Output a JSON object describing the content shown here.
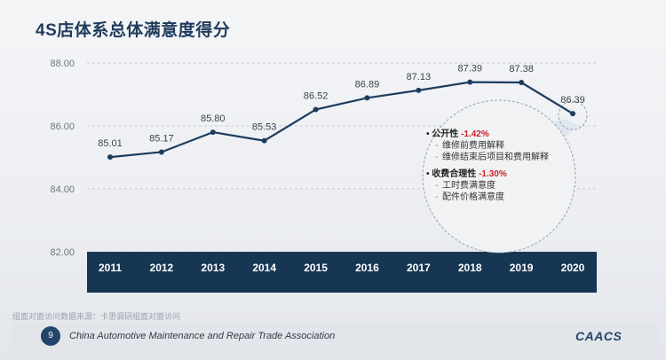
{
  "title": "4S店体系总体满意度得分",
  "source": "组面对面访问数据来源：卡思调研组面对面访问",
  "footer": {
    "page_number": "9",
    "org_name": "China Automotive Maintenance and Repair Trade Association",
    "logo_text": "CAACS"
  },
  "colors": {
    "line": "#1d3d5e",
    "band": "#173654",
    "grid": "#c7cbd2",
    "highlight_red": "#d0202a"
  },
  "chart_data": {
    "type": "line",
    "categories": [
      "2011",
      "2012",
      "2013",
      "2014",
      "2015",
      "2016",
      "2017",
      "2018",
      "2019",
      "2020"
    ],
    "values": [
      85.01,
      85.17,
      85.8,
      85.53,
      86.52,
      86.89,
      87.13,
      87.39,
      87.38,
      86.39
    ],
    "value_labels": [
      "85.01",
      "85.17",
      "85.80",
      "85.53",
      "86.52",
      "86.89",
      "87.13",
      "87.39",
      "87.38",
      "86.39"
    ],
    "y_ticks": [
      "88.00",
      "86.00",
      "84.00",
      "82.00"
    ],
    "ylim": [
      82,
      88
    ],
    "grid": "horizontal dashed",
    "title": "4S店体系总体满意度得分"
  },
  "callout": {
    "groups": [
      {
        "bullet": "•",
        "name": "公开性",
        "change": "-1.42%",
        "items": [
          "维修前费用解释",
          "维修结束后项目和费用解释"
        ]
      },
      {
        "bullet": "•",
        "name": "收费合理性",
        "change": "-1.30%",
        "items": [
          "工时费满意度",
          "配件价格满意度"
        ]
      }
    ]
  }
}
